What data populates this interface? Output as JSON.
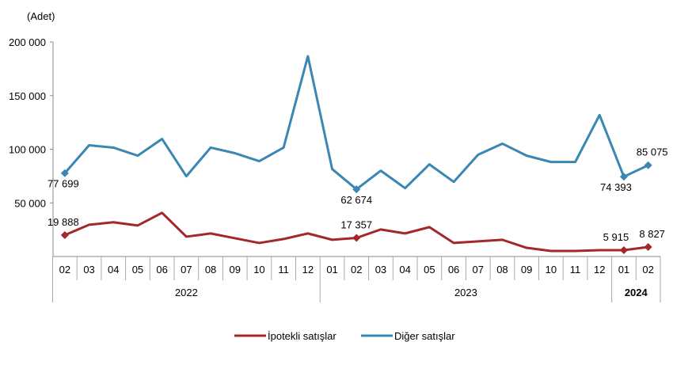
{
  "chart_data": {
    "type": "line",
    "unit_label": "(Adet)",
    "ylim": [
      0,
      200000
    ],
    "yticks": [
      {
        "value": 50000,
        "label": "50 000"
      },
      {
        "value": 100000,
        "label": "100 000"
      },
      {
        "value": 150000,
        "label": "150 000"
      },
      {
        "value": 200000,
        "label": "200 000"
      }
    ],
    "months": [
      "02",
      "03",
      "04",
      "05",
      "06",
      "07",
      "08",
      "09",
      "10",
      "11",
      "12",
      "01",
      "02",
      "03",
      "04",
      "05",
      "06",
      "07",
      "08",
      "09",
      "10",
      "11",
      "12",
      "01",
      "02"
    ],
    "years": [
      {
        "label": "2022",
        "span": 11
      },
      {
        "label": "2023",
        "span": 12
      },
      {
        "label": "2024",
        "span": 2
      }
    ],
    "series": [
      {
        "name": "İpotekli satışlar",
        "color": "#a3282b",
        "values": [
          19888,
          29600,
          31900,
          28900,
          40700,
          18500,
          21500,
          17000,
          12600,
          16300,
          21500,
          15600,
          17357,
          25200,
          21500,
          27400,
          12600,
          14100,
          15600,
          8100,
          5200,
          5200,
          5900,
          5915,
          8827
        ],
        "labels": [
          {
            "index": 0,
            "text": "19 888"
          },
          {
            "index": 12,
            "text": "17 357"
          },
          {
            "index": 23,
            "text": "5 915"
          },
          {
            "index": 24,
            "text": "8 827"
          }
        ]
      },
      {
        "name": "Diğer satışlar",
        "color": "#3a87b3",
        "values": [
          77699,
          103700,
          101500,
          94000,
          109600,
          74800,
          101500,
          96300,
          88900,
          101500,
          186700,
          81500,
          62674,
          80000,
          63700,
          85900,
          69600,
          94800,
          105200,
          94000,
          88100,
          88100,
          131900,
          74393,
          85075
        ],
        "labels": [
          {
            "index": 0,
            "text": "77 699"
          },
          {
            "index": 12,
            "text": "62 674"
          },
          {
            "index": 23,
            "text": "74 393"
          },
          {
            "index": 24,
            "text": "85 075"
          }
        ]
      }
    ]
  }
}
